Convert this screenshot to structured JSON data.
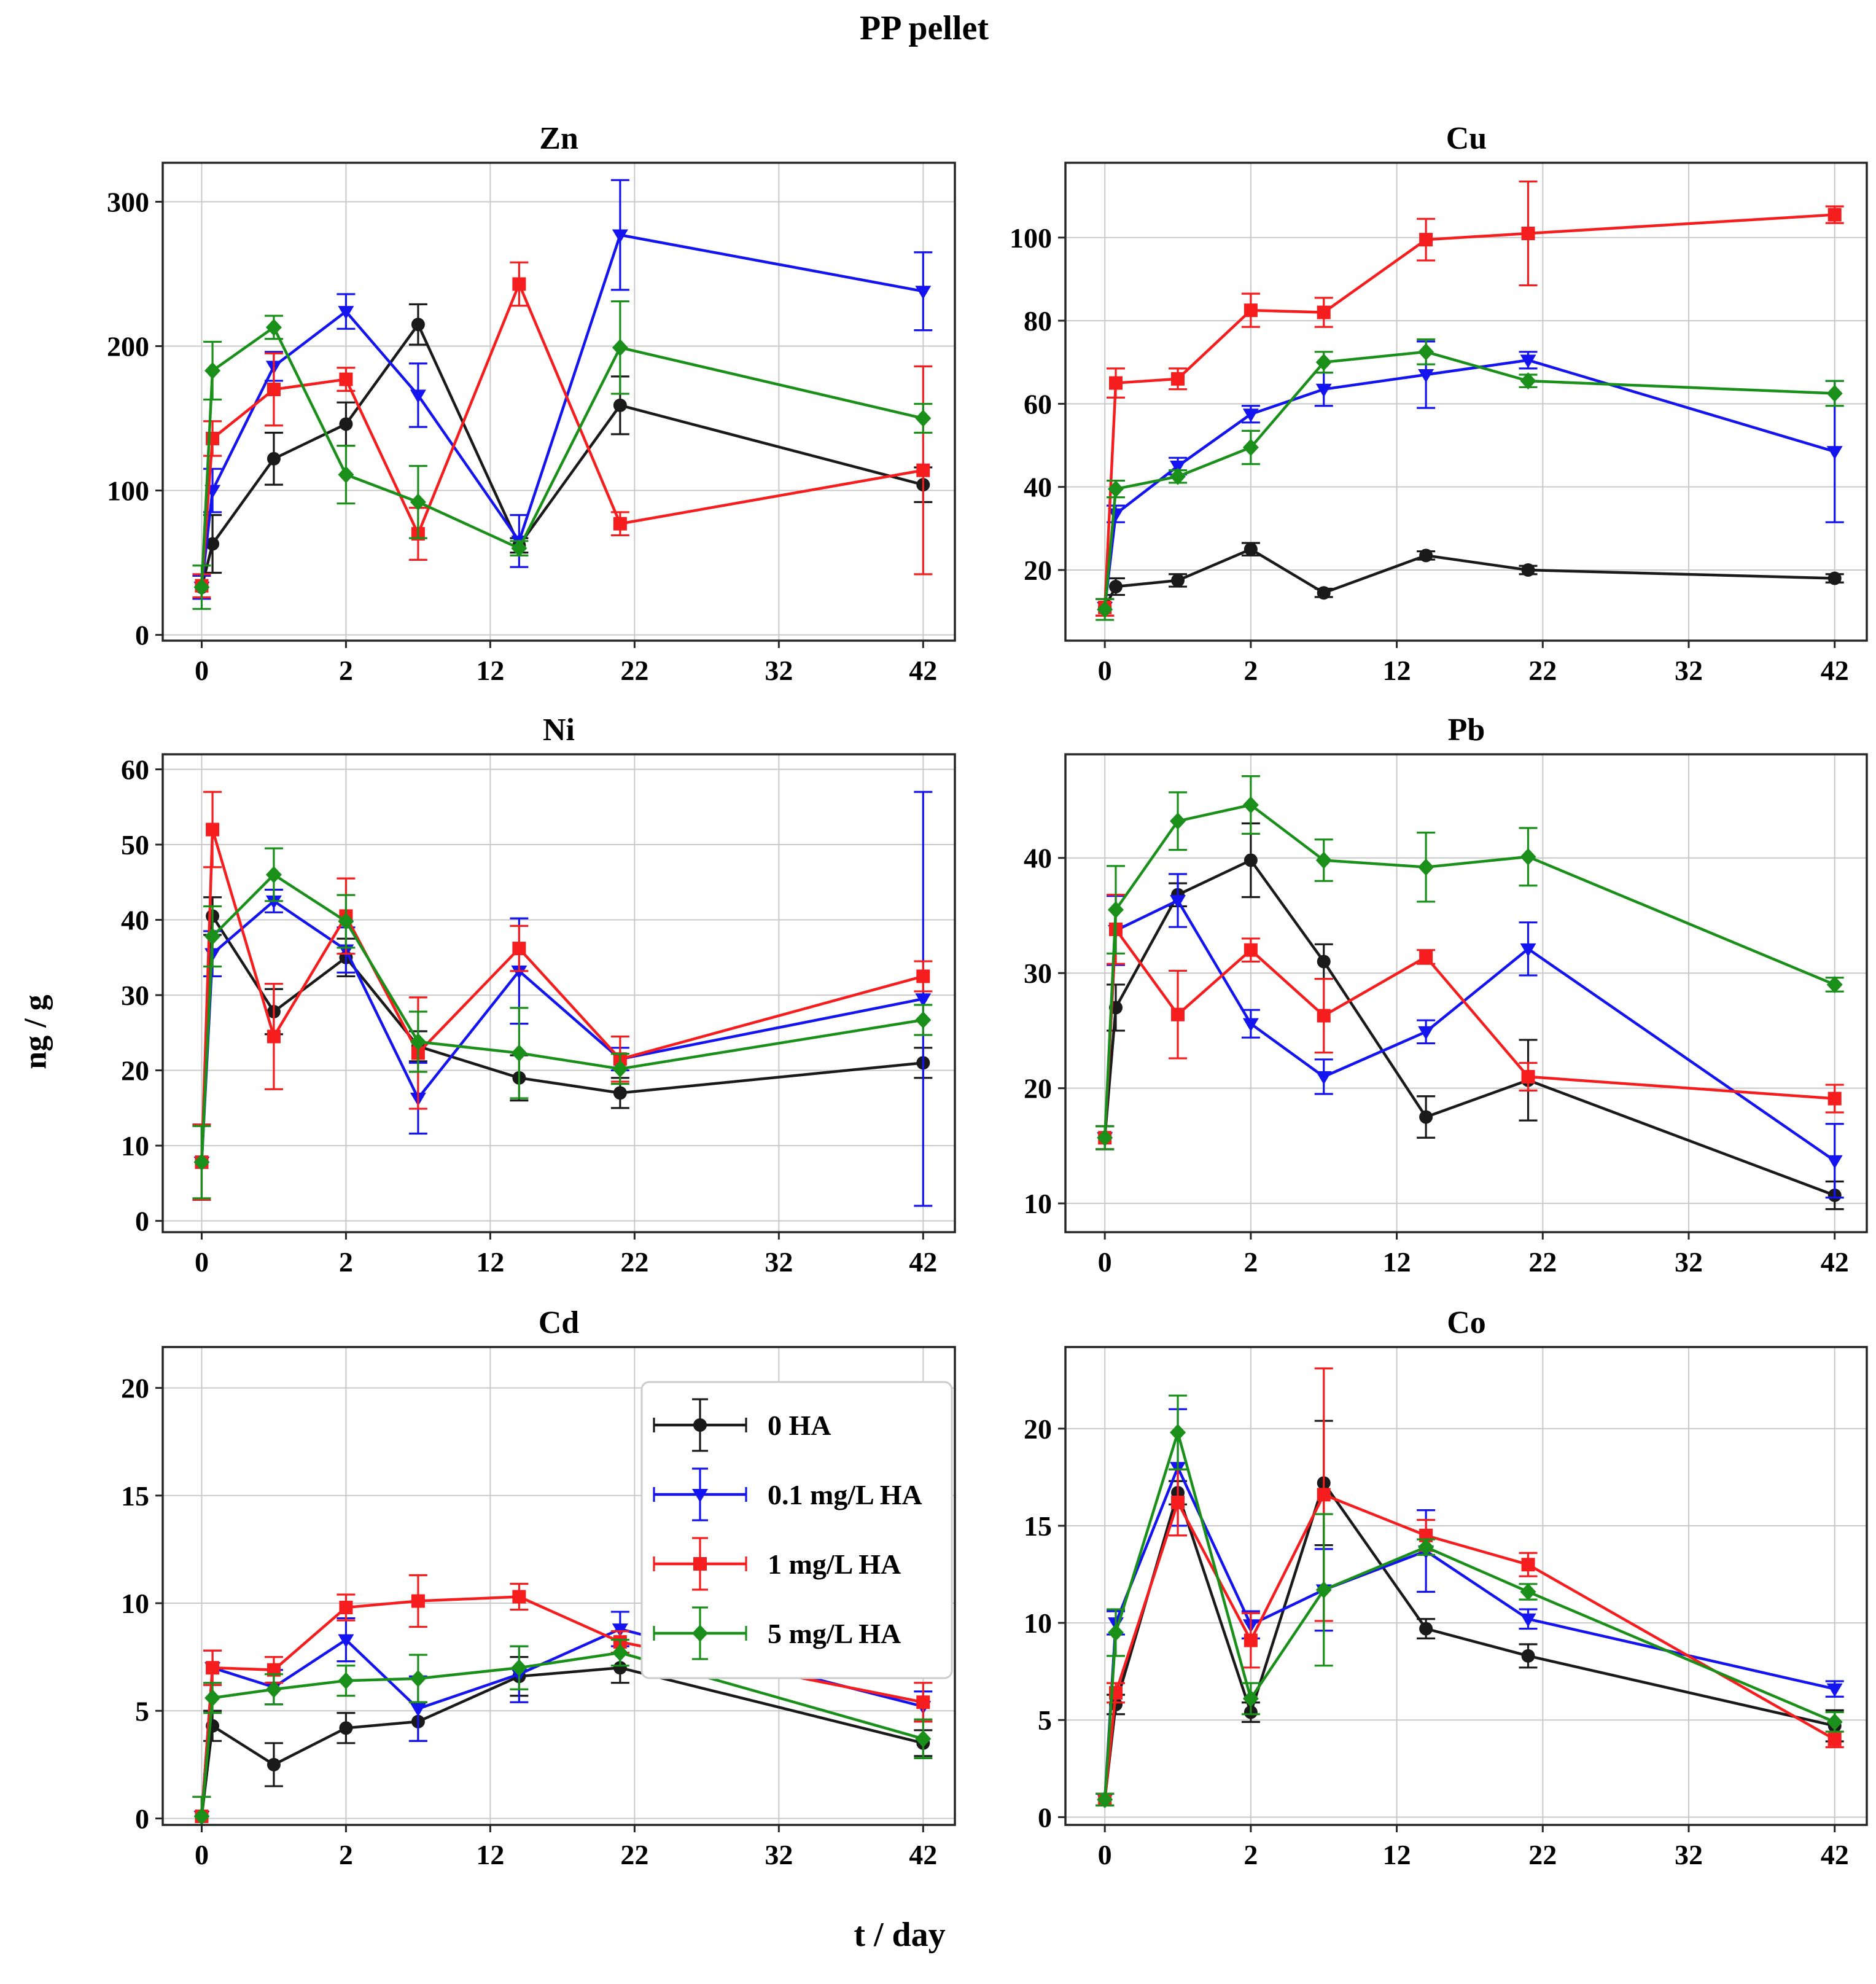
{
  "figure": {
    "title": "PP pellet",
    "x_axis_label": "t / day",
    "y_axis_label": "ng / g"
  },
  "legend": {
    "location": "inside Cd panel, upper right",
    "entries": [
      {
        "label": "0 HA",
        "color": "#1a1a1a",
        "marker": "circle"
      },
      {
        "label": "0.1 mg/L HA",
        "color": "#1414f0",
        "marker": "triangle-down"
      },
      {
        "label": "1 mg/L HA",
        "color": "#f51d1d",
        "marker": "square"
      },
      {
        "label": "5 mg/L HA",
        "color": "#1a8f1a",
        "marker": "diamond"
      }
    ]
  },
  "chart_data": [
    {
      "type": "line",
      "title": "Zn",
      "grid": true,
      "x": [
        0,
        0.15,
        1,
        2,
        7,
        14,
        21,
        42
      ],
      "x_ticks": [
        0,
        2,
        12,
        22,
        32,
        42
      ],
      "y_ticks": [
        0,
        100,
        200,
        300
      ],
      "ylim": [
        -4,
        327
      ],
      "series": [
        {
          "name": "0 HA",
          "values": [
            33,
            63,
            122,
            146,
            215,
            62,
            159,
            104
          ],
          "errors": [
            8,
            20,
            18,
            15,
            14,
            5,
            20,
            12
          ]
        },
        {
          "name": "0.1 mg/L HA",
          "values": [
            33,
            100,
            186,
            224,
            166,
            65,
            277,
            238
          ],
          "errors": [
            8,
            15,
            10,
            12,
            22,
            18,
            38,
            27
          ]
        },
        {
          "name": "1 mg/L HA",
          "values": [
            34,
            136,
            170,
            177,
            70,
            243,
            77,
            114
          ],
          "errors": [
            8,
            12,
            25,
            8,
            18,
            15,
            8,
            72
          ]
        },
        {
          "name": "5 mg/L HA",
          "values": [
            33,
            183,
            213,
            111,
            92,
            60,
            199,
            150
          ],
          "errors": [
            15,
            20,
            8,
            20,
            25,
            5,
            32,
            10
          ]
        }
      ]
    },
    {
      "type": "line",
      "title": "Cu",
      "grid": true,
      "x": [
        0,
        0.15,
        1,
        2,
        7,
        14,
        21,
        42
      ],
      "x_ticks": [
        0,
        2,
        12,
        22,
        32,
        42
      ],
      "y_ticks": [
        20,
        40,
        60,
        80,
        100
      ],
      "ylim": [
        3,
        118
      ],
      "series": [
        {
          "name": "0 HA",
          "values": [
            11,
            16,
            17.5,
            25,
            14.5,
            23.5,
            20,
            18
          ],
          "errors": [
            2,
            2,
            1.5,
            1.5,
            1,
            1,
            1,
            1
          ]
        },
        {
          "name": "0.1 mg/L HA",
          "values": [
            11,
            33.5,
            45,
            57.5,
            63.5,
            67,
            70.5,
            48.5
          ],
          "errors": [
            2,
            2,
            2,
            2,
            4,
            8,
            2,
            17
          ]
        },
        {
          "name": "1 mg/L HA",
          "values": [
            11,
            65,
            66,
            82.5,
            82,
            99.5,
            101,
            105.5
          ],
          "errors": [
            2,
            3.5,
            2.5,
            4,
            3.5,
            5,
            12.5,
            2
          ]
        },
        {
          "name": "5 mg/L HA",
          "values": [
            10.5,
            39.5,
            42.5,
            49.5,
            70,
            72.5,
            65.5,
            62.5
          ],
          "errors": [
            2.5,
            2,
            1.5,
            4,
            2.5,
            3,
            1.5,
            3
          ]
        }
      ]
    },
    {
      "type": "line",
      "title": "Ni",
      "grid": true,
      "x": [
        0,
        0.15,
        1,
        2,
        7,
        14,
        21,
        42
      ],
      "x_ticks": [
        0,
        2,
        12,
        22,
        32,
        42
      ],
      "y_ticks": [
        0,
        10,
        20,
        30,
        40,
        50,
        60
      ],
      "ylim": [
        -1.5,
        62
      ],
      "series": [
        {
          "name": "0 HA",
          "values": [
            7.8,
            40.5,
            27.8,
            35,
            23.2,
            19,
            17,
            21
          ],
          "errors": [
            5,
            2.5,
            3,
            2.5,
            2,
            3,
            2,
            2
          ]
        },
        {
          "name": "0.1 mg/L HA",
          "values": [
            7.8,
            35.5,
            42.5,
            36,
            16.3,
            33.2,
            21.5,
            29.5
          ],
          "errors": [
            5,
            3,
            1.5,
            3,
            4.7,
            7,
            1.5,
            27.5
          ]
        },
        {
          "name": "1 mg/L HA",
          "values": [
            7.8,
            52,
            24.5,
            40.5,
            22.3,
            36.2,
            21.5,
            32.5
          ],
          "errors": [
            5,
            5,
            7,
            5,
            7.4,
            3,
            3,
            2
          ]
        },
        {
          "name": "5 mg/L HA",
          "values": [
            7.8,
            37.8,
            46,
            39.8,
            23.8,
            22.3,
            20.2,
            26.7
          ],
          "errors": [
            4.8,
            4,
            3.5,
            3.5,
            4,
            6,
            2,
            2
          ]
        }
      ]
    },
    {
      "type": "line",
      "title": "Pb",
      "grid": true,
      "x": [
        0,
        0.15,
        1,
        2,
        7,
        14,
        21,
        42
      ],
      "x_ticks": [
        0,
        2,
        12,
        22,
        32,
        42
      ],
      "y_ticks": [
        10,
        20,
        30,
        40
      ],
      "ylim": [
        7.5,
        49
      ],
      "series": [
        {
          "name": "0 HA",
          "values": [
            15.7,
            27,
            36.8,
            39.8,
            31,
            17.5,
            20.7,
            10.7
          ],
          "errors": [
            1,
            2,
            1,
            3.2,
            1.5,
            1.8,
            3.5,
            1.2
          ]
        },
        {
          "name": "0.1 mg/L HA",
          "values": [
            15.7,
            33.7,
            36.3,
            25.6,
            21,
            24.9,
            32.1,
            13.7
          ],
          "errors": [
            1,
            3,
            2.3,
            1.2,
            1.5,
            1,
            2.3,
            3.2
          ]
        },
        {
          "name": "1 mg/L HA",
          "values": [
            15.7,
            33.8,
            26.4,
            32,
            26.3,
            31.4,
            21,
            19.1
          ],
          "errors": [
            1,
            3,
            3.8,
            1,
            3.2,
            0.6,
            1.2,
            1.2
          ]
        },
        {
          "name": "5 mg/L HA",
          "values": [
            15.7,
            35.5,
            43.2,
            44.6,
            39.8,
            39.2,
            40.1,
            29
          ],
          "errors": [
            1,
            3.8,
            2.5,
            2.5,
            1.8,
            3,
            2.5,
            0.6
          ]
        }
      ]
    },
    {
      "type": "line",
      "title": "Cd",
      "grid": true,
      "show_legend": true,
      "x": [
        0,
        0.15,
        1,
        2,
        7,
        14,
        21,
        42
      ],
      "x_ticks": [
        0,
        2,
        12,
        22,
        32,
        42
      ],
      "y_ticks": [
        0,
        5,
        10,
        15,
        20
      ],
      "ylim": [
        -0.3,
        21.9
      ],
      "series": [
        {
          "name": "0 HA",
          "values": [
            0.1,
            4.3,
            2.5,
            4.2,
            4.5,
            6.6,
            7.0,
            3.5
          ],
          "errors": [
            0.9,
            0.7,
            1,
            0.7,
            0.9,
            0.9,
            0.7,
            0.6
          ]
        },
        {
          "name": "0.1 mg/L HA",
          "values": [
            0.1,
            7.0,
            6.1,
            8.3,
            5.1,
            6.7,
            8.8,
            5.2
          ],
          "errors": [
            0.9,
            0.8,
            0.8,
            1,
            1.5,
            1.3,
            0.8,
            0.7
          ]
        },
        {
          "name": "1 mg/L HA",
          "values": [
            0.1,
            7.0,
            6.9,
            9.8,
            10.1,
            10.3,
            8.2,
            5.4
          ],
          "errors": [
            0.9,
            0.8,
            0.6,
            0.6,
            1.2,
            0.6,
            0.5,
            0.9
          ]
        },
        {
          "name": "5 mg/L HA",
          "values": [
            0.1,
            5.6,
            6.0,
            6.4,
            6.5,
            7.0,
            7.7,
            3.7
          ],
          "errors": [
            0.9,
            0.7,
            0.7,
            0.7,
            1.1,
            1,
            0.6,
            0.9
          ]
        }
      ]
    },
    {
      "type": "line",
      "title": "Co",
      "grid": true,
      "x": [
        0,
        0.15,
        1,
        2,
        7,
        14,
        21,
        42
      ],
      "x_ticks": [
        0,
        2,
        12,
        22,
        32,
        42
      ],
      "y_ticks": [
        0,
        5,
        10,
        15,
        20
      ],
      "ylim": [
        -0.4,
        24.2
      ],
      "series": [
        {
          "name": "0 HA",
          "values": [
            0.9,
            5.8,
            16.7,
            5.4,
            17.2,
            9.7,
            8.3,
            4.7
          ],
          "errors": [
            0.3,
            0.5,
            0.6,
            0.5,
            3.2,
            0.5,
            0.6,
            0.8
          ]
        },
        {
          "name": "0.1 mg/L HA",
          "values": [
            0.9,
            10.0,
            18.0,
            9.9,
            11.7,
            13.7,
            10.2,
            6.6
          ],
          "errors": [
            0.3,
            0.6,
            3,
            0.7,
            2.1,
            2.1,
            0.5,
            0.4
          ]
        },
        {
          "name": "1 mg/L HA",
          "values": [
            0.9,
            6.4,
            16.2,
            9.1,
            16.6,
            14.5,
            13.0,
            4.0
          ],
          "errors": [
            0.3,
            0.5,
            1.7,
            1.4,
            6.5,
            0.8,
            0.6,
            0.4
          ]
        },
        {
          "name": "5 mg/L HA",
          "values": [
            0.9,
            9.5,
            19.8,
            6.1,
            11.7,
            13.9,
            11.6,
            4.9
          ],
          "errors": [
            0.3,
            1.2,
            1.9,
            0.8,
            3.9,
            0.4,
            0.4,
            0.5
          ]
        }
      ]
    }
  ]
}
